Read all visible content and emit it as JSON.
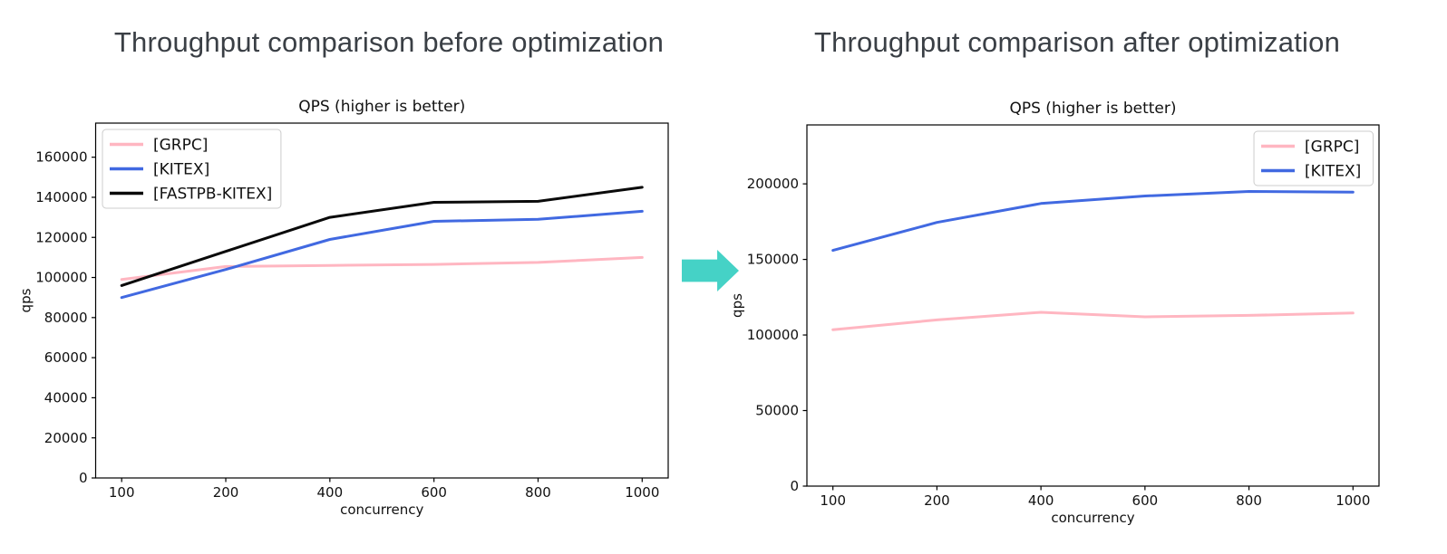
{
  "headings": {
    "before": "Throughput comparison before optimization",
    "after": "Throughput comparison after optimization"
  },
  "arrow": {
    "icon": "right-arrow-icon",
    "color": "#45d2c6"
  },
  "chart_text_color": "#111111",
  "chart_data": [
    {
      "id": "before",
      "type": "line",
      "title": "QPS (higher is better)",
      "xlabel": "concurrency",
      "ylabel": "qps",
      "categories": [
        "100",
        "200",
        "400",
        "600",
        "800",
        "1000"
      ],
      "ylim": [
        0,
        177000
      ],
      "yticks": [
        0,
        20000,
        40000,
        60000,
        80000,
        100000,
        120000,
        140000,
        160000
      ],
      "grid": false,
      "legend_position": "upper-left",
      "series": [
        {
          "name": "[GRPC]",
          "color": "#ffb6c1",
          "values": [
            99000,
            105500,
            106000,
            106500,
            107500,
            110000
          ]
        },
        {
          "name": "[KITEX]",
          "color": "#4169e1",
          "values": [
            90000,
            104000,
            119000,
            128000,
            129000,
            133000
          ]
        },
        {
          "name": "[FASTPB-KITEX]",
          "color": "#0a0a0a",
          "values": [
            96000,
            113000,
            130000,
            137500,
            138000,
            145000
          ]
        }
      ]
    },
    {
      "id": "after",
      "type": "line",
      "title": "QPS (higher is better)",
      "xlabel": "concurrency",
      "ylabel": "qps",
      "categories": [
        "100",
        "200",
        "400",
        "600",
        "800",
        "1000"
      ],
      "ylim": [
        0,
        239000
      ],
      "yticks": [
        0,
        50000,
        100000,
        150000,
        200000
      ],
      "grid": false,
      "legend_position": "upper-right",
      "series": [
        {
          "name": "[GRPC]",
          "color": "#ffb6c1",
          "values": [
            103500,
            110000,
            115000,
            112000,
            113000,
            114500
          ]
        },
        {
          "name": "[KITEX]",
          "color": "#4169e1",
          "values": [
            156000,
            174500,
            187000,
            192000,
            195000,
            194500
          ]
        }
      ]
    }
  ]
}
